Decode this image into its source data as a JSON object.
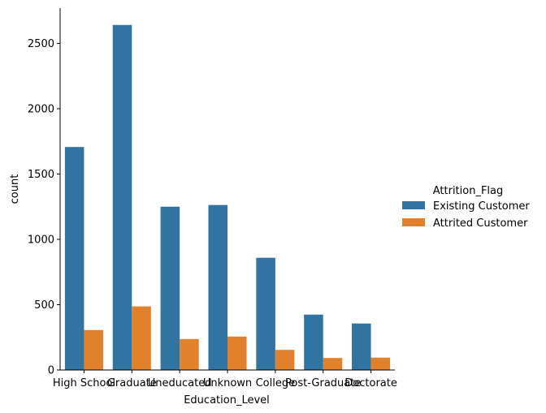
{
  "chart_data": {
    "type": "bar",
    "xlabel": "Education_Level",
    "ylabel": "count",
    "ylim": [
      0,
      2770
    ],
    "yticks": [
      0,
      500,
      1000,
      1500,
      2000,
      2500
    ],
    "grid": false,
    "legend_placement": "right",
    "legend_title": "Attrition_Flag",
    "categories": [
      "High School",
      "Graduate",
      "Uneducated",
      "Unknown",
      "College",
      "Post-Graduate",
      "Doctorate"
    ],
    "series": [
      {
        "name": "Existing Customer",
        "color": "#3274a1",
        "values": [
          1707,
          2641,
          1250,
          1263,
          859,
          424,
          356
        ]
      },
      {
        "name": "Attrited Customer",
        "color": "#e1812c",
        "values": [
          306,
          487,
          237,
          256,
          154,
          92,
          95
        ]
      }
    ]
  }
}
